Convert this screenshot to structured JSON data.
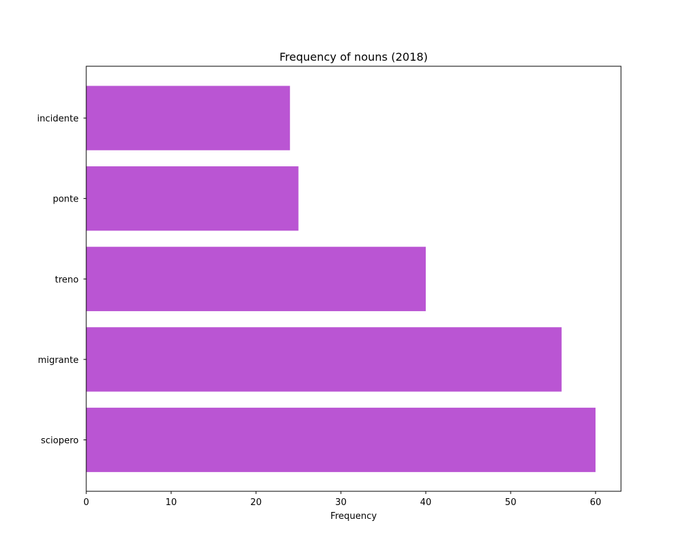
{
  "chart_data": {
    "type": "bar",
    "orientation": "horizontal",
    "title": "Frequency of nouns (2018)",
    "xlabel": "Frequency",
    "ylabel": "",
    "categories": [
      "sciopero",
      "migrante",
      "treno",
      "ponte",
      "incidente"
    ],
    "values": [
      60,
      56,
      40,
      25,
      24
    ],
    "xlim": [
      0,
      63
    ],
    "x_ticks": [
      0,
      10,
      20,
      30,
      40,
      50,
      60
    ],
    "bar_color": "#ba55d3",
    "grid": false,
    "legend": "none"
  }
}
